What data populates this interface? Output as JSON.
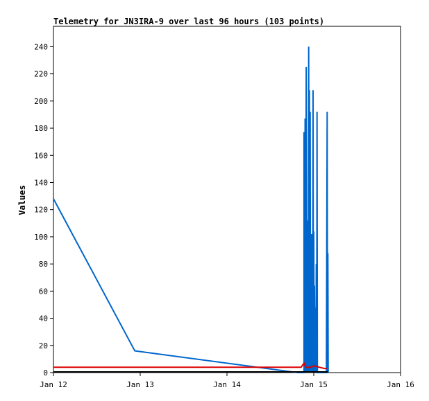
{
  "chart_data": {
    "type": "line",
    "title": "Telemetry for JN3IRA-9 over last 96 hours (103 points)",
    "xlabel": "",
    "ylabel": "Values",
    "x_unit": "hours since Jan 12 00:00",
    "xlim": [
      0,
      96
    ],
    "ylim": [
      0,
      255
    ],
    "x_ticks": [
      {
        "x": 0,
        "label": "Jan 12"
      },
      {
        "x": 24,
        "label": "Jan 13"
      },
      {
        "x": 48,
        "label": "Jan 14"
      },
      {
        "x": 72,
        "label": "Jan 15"
      },
      {
        "x": 96,
        "label": "Jan 16"
      }
    ],
    "y_ticks": [
      0,
      20,
      40,
      60,
      80,
      100,
      120,
      140,
      160,
      180,
      200,
      220,
      240
    ],
    "grid": false,
    "legend": "none",
    "series": [
      {
        "color": "#0066cc",
        "points": [
          [
            0,
            128
          ],
          [
            22.5,
            16
          ],
          [
            67.5,
            0
          ],
          [
            69.3,
            0
          ],
          [
            69.3,
            177
          ],
          [
            69.5,
            0
          ],
          [
            69.6,
            187
          ],
          [
            69.8,
            0
          ],
          [
            69.9,
            225
          ],
          [
            70.0,
            145
          ],
          [
            70.1,
            0
          ],
          [
            70.2,
            112
          ],
          [
            70.3,
            0
          ],
          [
            70.4,
            80
          ],
          [
            70.5,
            0
          ],
          [
            70.6,
            240
          ],
          [
            70.7,
            0
          ],
          [
            70.8,
            208
          ],
          [
            70.9,
            0
          ],
          [
            71.0,
            192
          ],
          [
            71.1,
            0
          ],
          [
            71.2,
            57
          ],
          [
            71.3,
            0
          ],
          [
            71.4,
            102
          ],
          [
            71.5,
            0
          ],
          [
            71.6,
            79
          ],
          [
            71.7,
            0
          ],
          [
            71.8,
            208
          ],
          [
            71.9,
            0
          ],
          [
            72.0,
            104
          ],
          [
            72.1,
            0
          ],
          [
            72.2,
            64
          ],
          [
            72.3,
            0
          ],
          [
            72.5,
            48
          ],
          [
            72.6,
            0
          ],
          [
            72.7,
            80
          ],
          [
            72.8,
            0
          ],
          [
            72.9,
            192
          ],
          [
            73.0,
            0
          ],
          [
            75.5,
            0
          ],
          [
            75.5,
            5
          ],
          [
            75.7,
            192
          ],
          [
            75.8,
            0
          ],
          [
            75.9,
            88
          ],
          [
            76.0,
            0
          ]
        ]
      },
      {
        "color": "#dd0000",
        "points": [
          [
            0,
            4
          ],
          [
            68.5,
            4
          ],
          [
            69.3,
            7
          ],
          [
            69.8,
            4
          ],
          [
            71.2,
            4
          ],
          [
            72.0,
            5
          ],
          [
            73.5,
            4
          ],
          [
            75.0,
            3
          ],
          [
            75.6,
            3
          ]
        ]
      },
      {
        "color": "#000000",
        "points": [
          [
            0,
            0.5
          ],
          [
            76,
            0.5
          ]
        ]
      }
    ]
  }
}
